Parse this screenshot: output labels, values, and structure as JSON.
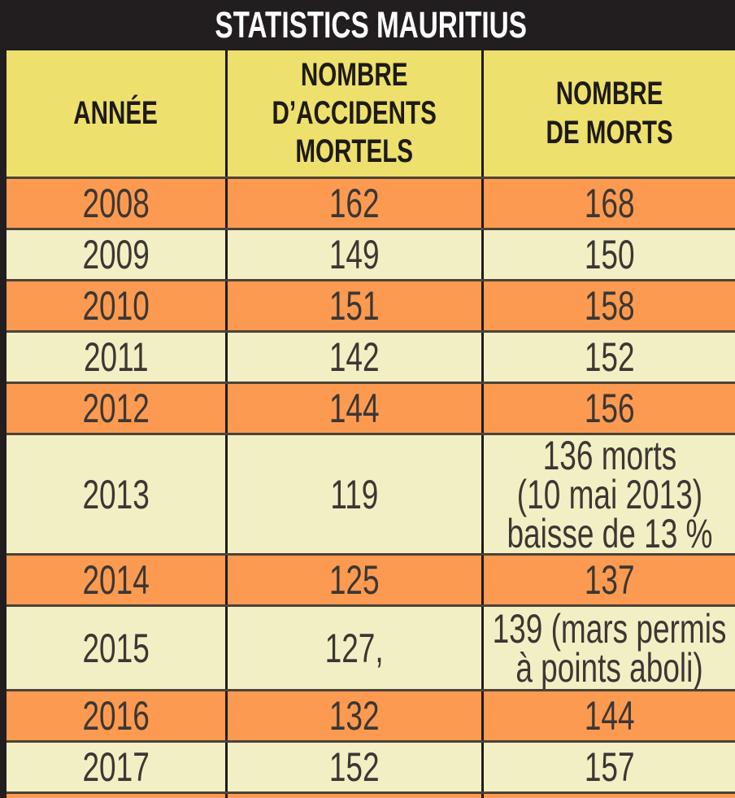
{
  "table": {
    "title": "STATISTICS MAURITIUS",
    "columns": [
      {
        "id": "annee",
        "lines": [
          "ANNÉE"
        ]
      },
      {
        "id": "accidents",
        "lines": [
          "NOMBRE",
          "D’ACCIDENTS",
          "MORTELS"
        ]
      },
      {
        "id": "morts",
        "lines": [
          "NOMBRE",
          "DE MORTS"
        ]
      }
    ],
    "rows": [
      {
        "year": "2008",
        "accidents": "162",
        "deaths": [
          "168"
        ],
        "shade": "orange"
      },
      {
        "year": "2009",
        "accidents": "149",
        "deaths": [
          "150"
        ],
        "shade": "cream"
      },
      {
        "year": "2010",
        "accidents": "151",
        "deaths": [
          "158"
        ],
        "shade": "orange"
      },
      {
        "year": "2011",
        "accidents": "142",
        "deaths": [
          "152"
        ],
        "shade": "cream"
      },
      {
        "year": "2012",
        "accidents": "144",
        "deaths": [
          "156"
        ],
        "shade": "orange"
      },
      {
        "year": "2013",
        "accidents": "119",
        "deaths": [
          "136 morts",
          "(10 mai 2013)",
          "baisse de 13 %"
        ],
        "shade": "cream"
      },
      {
        "year": "2014",
        "accidents": "125",
        "deaths": [
          "137"
        ],
        "shade": "orange"
      },
      {
        "year": "2015",
        "accidents": "127,",
        "deaths": [
          "139 (mars permis",
          "à points aboli)"
        ],
        "shade": "cream"
      },
      {
        "year": "2016",
        "accidents": "132",
        "deaths": [
          "144"
        ],
        "shade": "orange"
      },
      {
        "year": "2017",
        "accidents": "152",
        "deaths": [
          "157"
        ],
        "shade": "cream"
      }
    ],
    "colors": {
      "orange": "#FB9A50",
      "cream": "#F2EFC4",
      "header_yellow": "#EDE06C",
      "title_black": "#221E1F",
      "text": "#3B3734",
      "title_text": "#FFFFFF"
    }
  }
}
